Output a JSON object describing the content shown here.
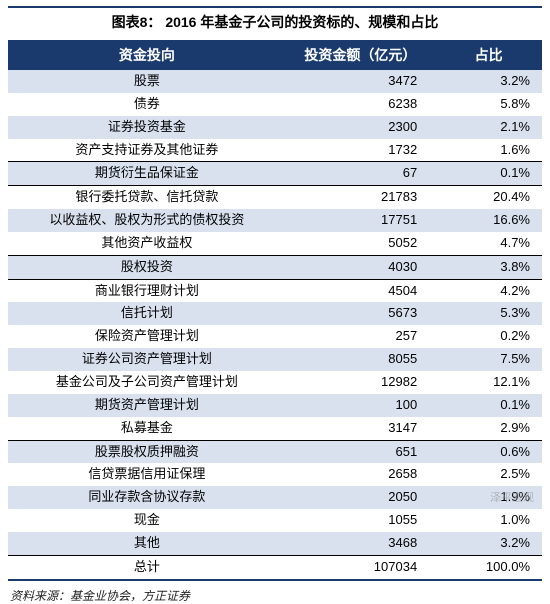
{
  "title": "图表8：  2016 年基金子公司的投资标的、规模和占比",
  "columns": [
    "资金投向",
    "投资金额（亿元）",
    "占比"
  ],
  "rows": [
    {
      "label": "股票",
      "amount": "3472",
      "pct": "3.2%",
      "stripe": true,
      "sep": false
    },
    {
      "label": "债券",
      "amount": "6238",
      "pct": "5.8%",
      "stripe": false,
      "sep": false
    },
    {
      "label": "证券投资基金",
      "amount": "2300",
      "pct": "2.1%",
      "stripe": true,
      "sep": false
    },
    {
      "label": "资产支持证券及其他证券",
      "amount": "1732",
      "pct": "1.6%",
      "stripe": false,
      "sep": false
    },
    {
      "label": "期货衍生品保证金",
      "amount": "67",
      "pct": "0.1%",
      "stripe": true,
      "sep": true
    },
    {
      "label": "银行委托贷款、信托贷款",
      "amount": "21783",
      "pct": "20.4%",
      "stripe": false,
      "sep": true
    },
    {
      "label": "以收益权、股权为形式的债权投资",
      "amount": "17751",
      "pct": "16.6%",
      "stripe": true,
      "sep": false
    },
    {
      "label": "其他资产收益权",
      "amount": "5052",
      "pct": "4.7%",
      "stripe": false,
      "sep": false
    },
    {
      "label": "股权投资",
      "amount": "4030",
      "pct": "3.8%",
      "stripe": true,
      "sep": true
    },
    {
      "label": "商业银行理财计划",
      "amount": "4504",
      "pct": "4.2%",
      "stripe": false,
      "sep": true
    },
    {
      "label": "信托计划",
      "amount": "5673",
      "pct": "5.3%",
      "stripe": true,
      "sep": false
    },
    {
      "label": "保险资产管理计划",
      "amount": "257",
      "pct": "0.2%",
      "stripe": false,
      "sep": false
    },
    {
      "label": "证券公司资产管理计划",
      "amount": "8055",
      "pct": "7.5%",
      "stripe": true,
      "sep": false
    },
    {
      "label": "基金公司及子公司资产管理计划",
      "amount": "12982",
      "pct": "12.1%",
      "stripe": false,
      "sep": false
    },
    {
      "label": "期货资产管理计划",
      "amount": "100",
      "pct": "0.1%",
      "stripe": true,
      "sep": false
    },
    {
      "label": "私募基金",
      "amount": "3147",
      "pct": "2.9%",
      "stripe": false,
      "sep": false
    },
    {
      "label": "股票股权质押融资",
      "amount": "651",
      "pct": "0.6%",
      "stripe": true,
      "sep": true
    },
    {
      "label": "信贷票据信用证保理",
      "amount": "2658",
      "pct": "2.5%",
      "stripe": false,
      "sep": false
    },
    {
      "label": "同业存款含协议存款",
      "amount": "2050",
      "pct": "1.9%",
      "stripe": true,
      "sep": false
    },
    {
      "label": "现金",
      "amount": "1055",
      "pct": "1.0%",
      "stripe": false,
      "sep": false
    },
    {
      "label": "其他",
      "amount": "3468",
      "pct": "3.2%",
      "stripe": true,
      "sep": false
    }
  ],
  "total": {
    "label": "总计",
    "amount": "107034",
    "pct": "100.0%"
  },
  "source": "资料来源：基金业协会，方正证券",
  "watermark": "泽平宏观",
  "colors": {
    "header_bg": "#1a3a6e",
    "header_fg": "#ffffff",
    "stripe_bg": "#d9e1ef",
    "plain_bg": "#ffffff",
    "border": "#000000",
    "accent_border": "#1a3a6e"
  }
}
